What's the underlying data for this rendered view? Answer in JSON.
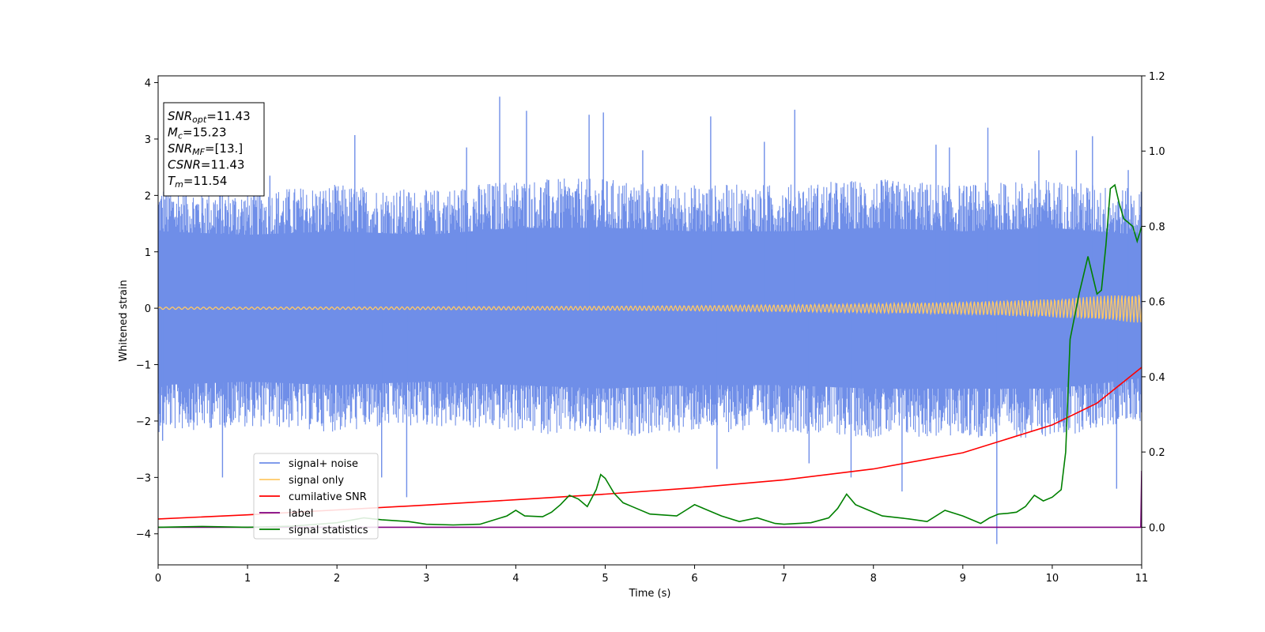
{
  "chart_data": {
    "type": "line",
    "xlabel": "Time (s)",
    "ylabel": "Whitened strain",
    "xlim": [
      0,
      11
    ],
    "ylim": [
      -4.55,
      4.12
    ],
    "y2lim": [
      -0.1,
      1.2
    ],
    "grid": false,
    "legend_position": "lower-left",
    "x_ticks": [
      0,
      1,
      2,
      3,
      4,
      5,
      6,
      7,
      8,
      9,
      10,
      11
    ],
    "x_tick_labels": [
      "0",
      "1",
      "2",
      "3",
      "4",
      "5",
      "6",
      "7",
      "8",
      "9",
      "10",
      "11"
    ],
    "y_ticks": [
      4,
      3,
      2,
      1,
      0,
      -1,
      -2,
      -3,
      -4
    ],
    "y_tick_labels": [
      "4",
      "3",
      "2",
      "1",
      "0",
      "−1",
      "−2",
      "−3",
      "−4"
    ],
    "y2_ticks": [
      1.2,
      1.0,
      0.8,
      0.6,
      0.4,
      0.2,
      0.0
    ],
    "y2_tick_labels": [
      "1.2",
      "1.0",
      "0.8",
      "0.6",
      "0.4",
      "0.2",
      "0.0"
    ],
    "info_box": [
      {
        "base": "SNR",
        "sub": "opt",
        "value": "=11.43"
      },
      {
        "base": "M",
        "sub": "c",
        "value": "=15.23"
      },
      {
        "base": "SNR",
        "sub": "MF",
        "value": "=[13.]"
      },
      {
        "base": "CSNR",
        "sub": "",
        "value": "=11.43"
      },
      {
        "base": "T",
        "sub": "m",
        "value": "=11.54"
      }
    ],
    "series": [
      {
        "name": "signal+ noise",
        "color": "#6f8ee8",
        "axis": "left",
        "kind": "noise-envelope",
        "x": [
          0,
          1,
          2,
          3,
          4,
          5,
          6,
          7,
          8,
          9,
          10,
          11
        ],
        "y_upper": [
          2.2,
          2.1,
          2.2,
          2.1,
          2.3,
          2.3,
          2.2,
          2.2,
          2.3,
          2.2,
          2.3,
          2.1
        ],
        "y_lower": [
          -2.2,
          -2.1,
          -2.2,
          -2.1,
          -2.2,
          -2.3,
          -2.2,
          -2.2,
          -2.3,
          -2.3,
          -2.3,
          -2.0
        ],
        "spikes": [
          {
            "x": 0.05,
            "y": -2.35
          },
          {
            "x": 0.72,
            "y": -3.0
          },
          {
            "x": 1.25,
            "y": 2.35
          },
          {
            "x": 2.2,
            "y": 3.07
          },
          {
            "x": 2.5,
            "y": -3.0
          },
          {
            "x": 2.78,
            "y": -3.35
          },
          {
            "x": 3.45,
            "y": 2.85
          },
          {
            "x": 3.82,
            "y": 3.75
          },
          {
            "x": 4.12,
            "y": 3.5
          },
          {
            "x": 4.82,
            "y": 3.43
          },
          {
            "x": 4.98,
            "y": 3.47
          },
          {
            "x": 5.42,
            "y": 2.8
          },
          {
            "x": 6.18,
            "y": 3.4
          },
          {
            "x": 6.25,
            "y": -2.85
          },
          {
            "x": 6.78,
            "y": 2.95
          },
          {
            "x": 7.12,
            "y": 3.52
          },
          {
            "x": 7.28,
            "y": -2.75
          },
          {
            "x": 7.75,
            "y": -3.0
          },
          {
            "x": 8.32,
            "y": -3.25
          },
          {
            "x": 8.7,
            "y": 2.9
          },
          {
            "x": 8.85,
            "y": 2.85
          },
          {
            "x": 9.28,
            "y": 3.2
          },
          {
            "x": 9.38,
            "y": -4.18
          },
          {
            "x": 9.85,
            "y": 2.8
          },
          {
            "x": 10.27,
            "y": 2.8
          },
          {
            "x": 10.45,
            "y": 3.05
          },
          {
            "x": 10.72,
            "y": -3.2
          },
          {
            "x": 10.85,
            "y": 2.45
          },
          {
            "x": 10.98,
            "y": -1.95
          }
        ]
      },
      {
        "name": "signal only",
        "color": "#ffc966",
        "axis": "left",
        "kind": "chirp",
        "x": [
          0,
          1,
          2,
          3,
          4,
          5,
          6,
          7,
          8,
          9,
          10,
          11
        ],
        "amplitude": [
          0.02,
          0.02,
          0.022,
          0.025,
          0.03,
          0.035,
          0.045,
          0.06,
          0.08,
          0.11,
          0.16,
          0.26
        ]
      },
      {
        "name": "cumilative SNR",
        "color": "#ff0000",
        "axis": "right",
        "x": [
          0,
          1,
          2,
          3,
          4,
          5,
          6,
          7,
          8,
          9,
          10,
          10.5,
          11
        ],
        "y": [
          0.022,
          0.033,
          0.046,
          0.059,
          0.073,
          0.088,
          0.105,
          0.126,
          0.155,
          0.198,
          0.272,
          0.33,
          0.425
        ]
      },
      {
        "name": "label",
        "color": "#800080",
        "axis": "right",
        "x": [
          0,
          10.99,
          11
        ],
        "y": [
          0,
          0,
          0.15
        ]
      },
      {
        "name": "signal statistics",
        "color": "#008000",
        "axis": "right",
        "x": [
          0,
          0.5,
          1,
          1.5,
          2,
          2.3,
          2.5,
          2.8,
          3,
          3.3,
          3.6,
          3.9,
          4.0,
          4.1,
          4.3,
          4.4,
          4.5,
          4.6,
          4.7,
          4.8,
          4.9,
          4.95,
          5.0,
          5.1,
          5.2,
          5.3,
          5.5,
          5.8,
          5.9,
          6.0,
          6.1,
          6.3,
          6.5,
          6.7,
          6.9,
          7.0,
          7.3,
          7.5,
          7.6,
          7.7,
          7.8,
          7.9,
          8.1,
          8.4,
          8.6,
          8.8,
          9.0,
          9.2,
          9.3,
          9.4,
          9.5,
          9.6,
          9.7,
          9.8,
          9.9,
          10.0,
          10.1,
          10.15,
          10.2,
          10.3,
          10.4,
          10.5,
          10.55,
          10.6,
          10.65,
          10.7,
          10.75,
          10.8,
          10.9,
          10.95,
          11.0
        ],
        "y": [
          0.0,
          0.002,
          0.0,
          0.003,
          0.012,
          0.025,
          0.02,
          0.015,
          0.008,
          0.006,
          0.008,
          0.03,
          0.045,
          0.03,
          0.028,
          0.04,
          0.06,
          0.085,
          0.075,
          0.055,
          0.1,
          0.14,
          0.13,
          0.09,
          0.065,
          0.055,
          0.035,
          0.03,
          0.045,
          0.06,
          0.05,
          0.03,
          0.015,
          0.025,
          0.01,
          0.008,
          0.012,
          0.025,
          0.05,
          0.088,
          0.06,
          0.05,
          0.03,
          0.022,
          0.015,
          0.045,
          0.03,
          0.01,
          0.025,
          0.035,
          0.037,
          0.04,
          0.055,
          0.085,
          0.07,
          0.08,
          0.1,
          0.2,
          0.5,
          0.62,
          0.72,
          0.62,
          0.63,
          0.75,
          0.9,
          0.91,
          0.86,
          0.82,
          0.8,
          0.76,
          0.8
        ]
      }
    ]
  }
}
